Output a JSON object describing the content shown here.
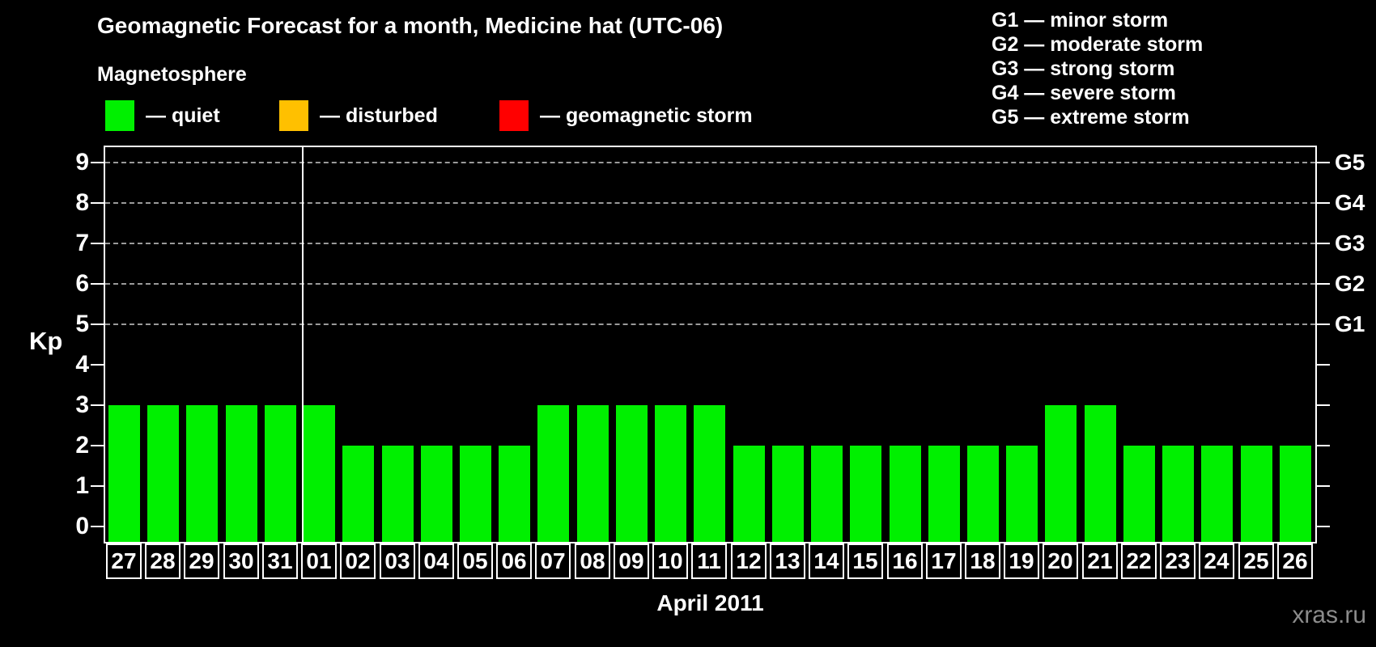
{
  "title": "Geomagnetic Forecast for a month, Medicine hat (UTC-06)",
  "subtitle": "Magnetosphere",
  "legend": {
    "items": [
      {
        "name": "quiet",
        "label": "— quiet",
        "color": "#00F000",
        "x": 130
      },
      {
        "name": "disturbed",
        "label": "— disturbed",
        "color": "#FFC000",
        "x": 345
      },
      {
        "name": "geomagnetic-storm",
        "label": "— geomagnetic storm",
        "color": "#FF0000",
        "x": 617
      }
    ]
  },
  "g_legend": {
    "lines": [
      "G1 — minor storm",
      "G2 — moderate storm",
      "G3 — strong storm",
      "G4 — severe storm",
      "G5 — extreme storm"
    ]
  },
  "watermark": "xras.ru",
  "colors": {
    "background": "#000000",
    "text": "#FFFFFF",
    "grid": "#9A9A9A",
    "bar": "#00F000",
    "axis": "#FFFFFF",
    "watermark": "#8C8C8C"
  },
  "chart_data": {
    "type": "bar",
    "title": "Geomagnetic Forecast for a month, Medicine hat (UTC-06)",
    "xlabel": "April 2011",
    "ylabel": "Kp",
    "ylim": [
      0,
      9
    ],
    "categories": [
      "27",
      "28",
      "29",
      "30",
      "31",
      "01",
      "02",
      "03",
      "04",
      "05",
      "06",
      "07",
      "08",
      "09",
      "10",
      "11",
      "12",
      "13",
      "14",
      "15",
      "16",
      "17",
      "18",
      "19",
      "20",
      "21",
      "22",
      "23",
      "24",
      "25",
      "26"
    ],
    "values": [
      3,
      3,
      3,
      3,
      3,
      3,
      2,
      2,
      2,
      2,
      2,
      3,
      3,
      3,
      3,
      3,
      2,
      2,
      2,
      2,
      2,
      2,
      2,
      2,
      3,
      3,
      2,
      2,
      2,
      2,
      2
    ],
    "bar_color": "#00F000",
    "yticks": [
      0,
      1,
      2,
      3,
      4,
      5,
      6,
      7,
      8,
      9
    ],
    "gridline_values": [
      5,
      6,
      7,
      8,
      9
    ],
    "right_axis_labels": [
      {
        "value": 5,
        "label": "G1"
      },
      {
        "value": 6,
        "label": "G2"
      },
      {
        "value": 7,
        "label": "G3"
      },
      {
        "value": 8,
        "label": "G4"
      },
      {
        "value": 9,
        "label": "G5"
      }
    ],
    "month_separator_after_category": "31",
    "legend_position": "top",
    "grid": true
  }
}
